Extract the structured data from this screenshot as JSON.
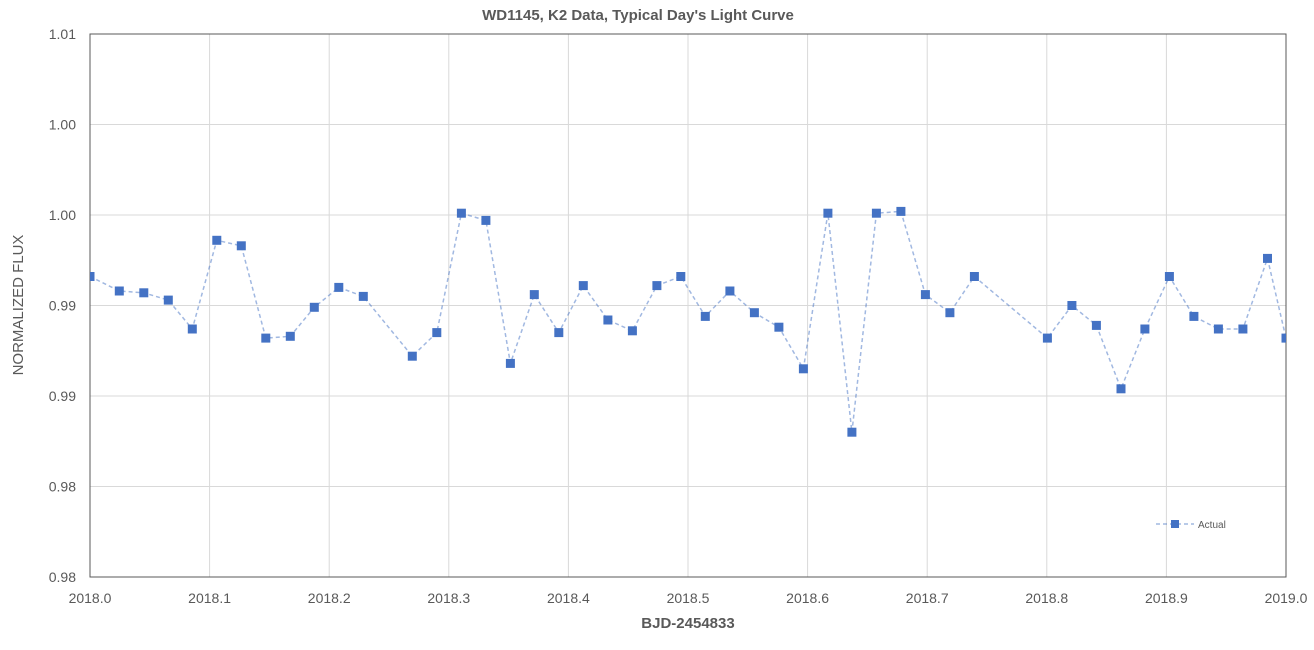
{
  "chart_data": {
    "type": "line",
    "title": "WD1145, K2 Data, Typical Day's Light Curve",
    "xlabel": "BJD-2454833",
    "ylabel": "NORMALIZED FLUX",
    "xlim": [
      2018.0,
      2019.0
    ],
    "ylim": [
      0.98,
      1.01
    ],
    "x_ticks": [
      2018.0,
      2018.1,
      2018.2,
      2018.3,
      2018.4,
      2018.5,
      2018.6,
      2018.7,
      2018.8,
      2018.9,
      2019.0
    ],
    "x_tick_labels": [
      "2018.0",
      "2018.1",
      "2018.2",
      "2018.3",
      "2018.4",
      "2018.5",
      "2018.6",
      "2018.7",
      "2018.8",
      "2018.9",
      "2019.0"
    ],
    "y_ticks": [
      0.98,
      0.985,
      0.99,
      0.995,
      1.0,
      1.005,
      1.01
    ],
    "y_tick_labels": [
      "0.98",
      "0.98",
      "0.99",
      "0.99",
      "1.00",
      "1.00",
      "1.01"
    ],
    "grid": true,
    "legend_position": "bottom-right",
    "colors": {
      "series": "#4472c4",
      "grid": "#d9d9d9",
      "frame": "#595959"
    },
    "series": [
      {
        "name": "Actual",
        "style": "dashed line with square markers",
        "x": [
          2018.0,
          2018.0245,
          2018.045,
          2018.0655,
          2018.0855,
          2018.106,
          2018.1265,
          2018.147,
          2018.1675,
          2018.1875,
          2018.208,
          2018.2285,
          2018.2695,
          2018.29,
          2018.3105,
          2018.331,
          2018.3515,
          2018.3715,
          2018.392,
          2018.4125,
          2018.433,
          2018.4535,
          2018.474,
          2018.494,
          2018.5145,
          2018.535,
          2018.5555,
          2018.576,
          2018.5965,
          2018.617,
          2018.637,
          2018.6575,
          2018.678,
          2018.6985,
          2018.719,
          2018.7395,
          2018.8005,
          2018.821,
          2018.8415,
          2018.862,
          2018.882,
          2018.9025,
          2018.923,
          2018.9435,
          2018.964,
          2018.9845,
          2019.0
        ],
        "values": [
          0.9966,
          0.9958,
          0.9957,
          0.9953,
          0.9937,
          0.9986,
          0.9983,
          0.9932,
          0.9933,
          0.9949,
          0.996,
          0.9955,
          0.9922,
          0.9935,
          1.0001,
          0.9997,
          0.9918,
          0.9956,
          0.9935,
          0.9961,
          0.9942,
          0.9936,
          0.9961,
          0.9966,
          0.9944,
          0.9958,
          0.9946,
          0.9938,
          0.9915,
          1.0001,
          0.988,
          1.0001,
          1.0002,
          0.9956,
          0.9946,
          0.9966,
          0.9932,
          0.995,
          0.9939,
          0.9904,
          0.9937,
          0.9966,
          0.9944,
          0.9937,
          0.9937,
          0.9976,
          0.9932
        ]
      }
    ]
  }
}
